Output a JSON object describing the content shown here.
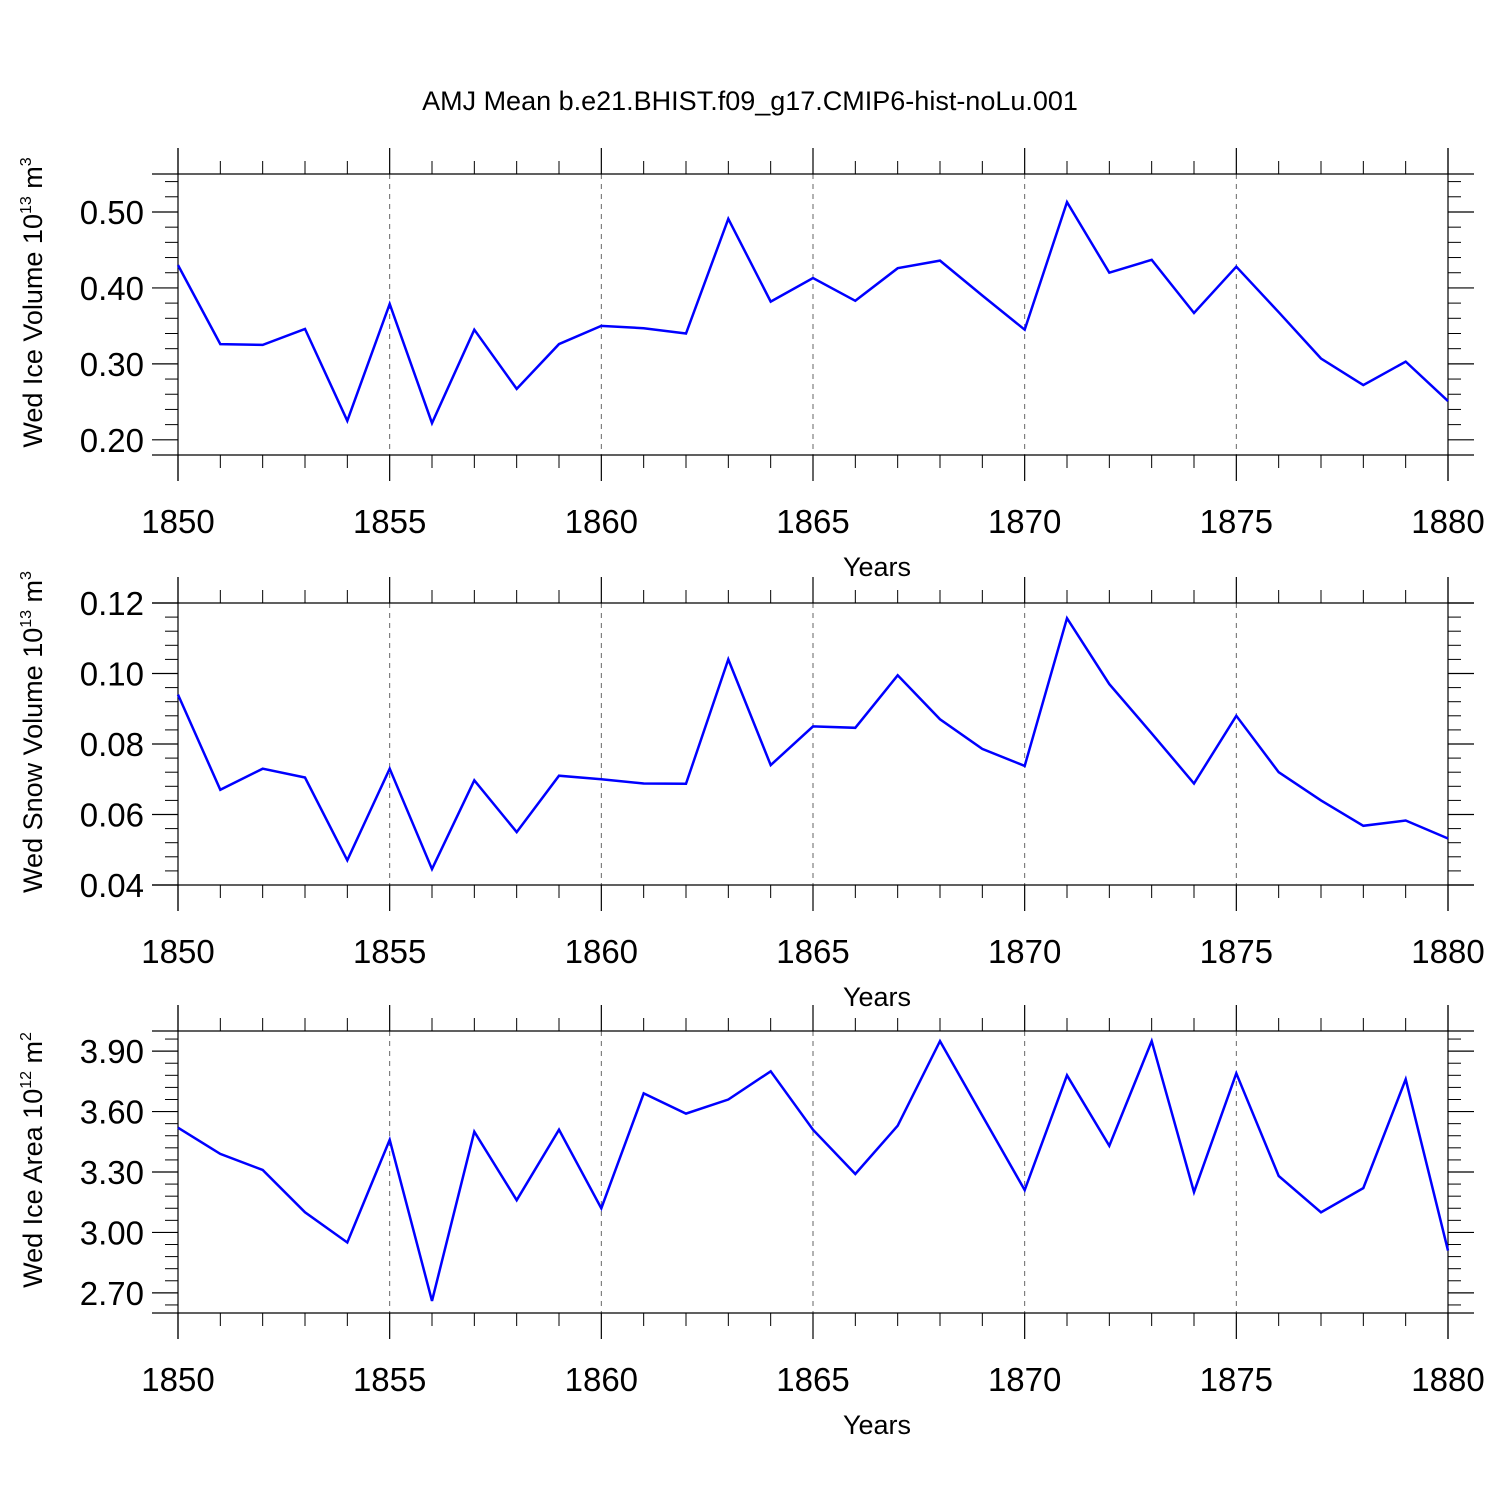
{
  "title": "AMJ Mean b.e21.BHIST.f09_g17.CMIP6-hist-noLu.001",
  "line_color": "#0000ff",
  "chart_data": [
    {
      "type": "line",
      "xlabel": "Years",
      "ylabel": {
        "main": "Wed Ice Volume 10",
        "exp": "13",
        "unit": " m",
        "unit_exp": "3"
      },
      "xlim": [
        1850,
        1880
      ],
      "ylim": [
        0.18,
        0.55
      ],
      "x_ticks": [
        1850,
        1855,
        1860,
        1865,
        1870,
        1875,
        1880
      ],
      "y_ticks": [
        0.2,
        0.3,
        0.4,
        0.5
      ],
      "y_tick_labels": [
        "0.20",
        "0.30",
        "0.40",
        "0.50"
      ],
      "grid": "dashed vertical at major x ticks",
      "x": [
        1850,
        1851,
        1852,
        1853,
        1854,
        1855,
        1856,
        1857,
        1858,
        1859,
        1860,
        1861,
        1862,
        1863,
        1864,
        1865,
        1866,
        1867,
        1868,
        1869,
        1870,
        1871,
        1872,
        1873,
        1874,
        1875,
        1876,
        1877,
        1878,
        1879,
        1880
      ],
      "series": [
        {
          "values": [
            0.43,
            0.326,
            0.325,
            0.346,
            0.225,
            0.379,
            0.222,
            0.345,
            0.267,
            0.326,
            0.35,
            0.347,
            0.34,
            0.491,
            0.382,
            0.413,
            0.383,
            0.426,
            0.436,
            0.39,
            0.345,
            0.513,
            0.42,
            0.437,
            0.367,
            0.428,
            0.368,
            0.307,
            0.272,
            0.303,
            0.251
          ]
        }
      ]
    },
    {
      "type": "line",
      "xlabel": "Years",
      "ylabel": {
        "main": "Wed Snow Volume 10",
        "exp": "13",
        "unit": " m",
        "unit_exp": "3"
      },
      "xlim": [
        1850,
        1880
      ],
      "ylim": [
        0.04,
        0.12
      ],
      "x_ticks": [
        1850,
        1855,
        1860,
        1865,
        1870,
        1875,
        1880
      ],
      "y_ticks": [
        0.04,
        0.06,
        0.08,
        0.1,
        0.12
      ],
      "y_tick_labels": [
        "0.04",
        "0.06",
        "0.08",
        "0.10",
        "0.12"
      ],
      "grid": "dashed vertical at major x ticks",
      "x": [
        1850,
        1851,
        1852,
        1853,
        1854,
        1855,
        1856,
        1857,
        1858,
        1859,
        1860,
        1861,
        1862,
        1863,
        1864,
        1865,
        1866,
        1867,
        1868,
        1869,
        1870,
        1871,
        1872,
        1873,
        1874,
        1875,
        1876,
        1877,
        1878,
        1879,
        1880
      ],
      "series": [
        {
          "values": [
            0.094,
            0.067,
            0.073,
            0.0705,
            0.047,
            0.073,
            0.0445,
            0.0697,
            0.055,
            0.071,
            0.07,
            0.0688,
            0.0687,
            0.104,
            0.074,
            0.085,
            0.0846,
            0.0995,
            0.087,
            0.0786,
            0.0738,
            0.1157,
            0.097,
            0.083,
            0.0688,
            0.088,
            0.072,
            0.064,
            0.0568,
            0.0583,
            0.0532
          ]
        }
      ]
    },
    {
      "type": "line",
      "xlabel": "Years",
      "ylabel": {
        "main": "Wed Ice Area 10",
        "exp": "12",
        "unit": " m",
        "unit_exp": "2"
      },
      "xlim": [
        1850,
        1880
      ],
      "ylim": [
        2.6,
        4.0
      ],
      "x_ticks": [
        1850,
        1855,
        1860,
        1865,
        1870,
        1875,
        1880
      ],
      "y_ticks": [
        2.7,
        3.0,
        3.3,
        3.6,
        3.9
      ],
      "y_tick_labels": [
        "2.70",
        "3.00",
        "3.30",
        "3.60",
        "3.90"
      ],
      "grid": "dashed vertical at major x ticks",
      "x": [
        1850,
        1851,
        1852,
        1853,
        1854,
        1855,
        1856,
        1857,
        1858,
        1859,
        1860,
        1861,
        1862,
        1863,
        1864,
        1865,
        1866,
        1867,
        1868,
        1869,
        1870,
        1871,
        1872,
        1873,
        1874,
        1875,
        1876,
        1877,
        1878,
        1879,
        1880
      ],
      "series": [
        {
          "values": [
            3.52,
            3.39,
            3.31,
            3.1,
            2.95,
            3.46,
            2.66,
            3.5,
            3.16,
            3.51,
            3.12,
            3.69,
            3.59,
            3.66,
            3.8,
            3.51,
            3.29,
            3.53,
            3.95,
            3.58,
            3.21,
            3.78,
            3.43,
            3.95,
            3.2,
            3.79,
            3.28,
            3.1,
            3.22,
            3.76,
            2.91
          ]
        }
      ]
    }
  ]
}
